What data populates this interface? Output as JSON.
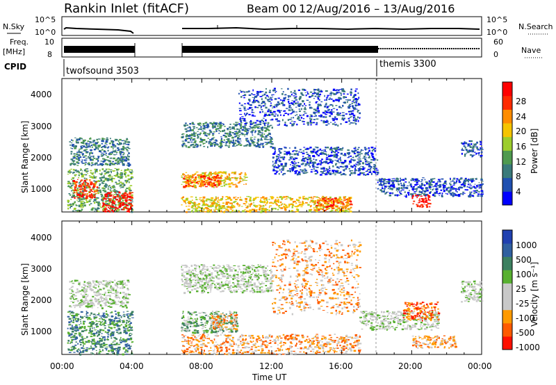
{
  "header": {
    "title": "Rankin Inlet (fitACF)",
    "beam": "Beam 00",
    "date_range": "12/Aug/2016 – 13/Aug/2016"
  },
  "top_panels": {
    "nsky_label": "N.Sky",
    "nsky_ticks": [
      "10^5",
      "10^0"
    ],
    "nsearch_label": "N.Search",
    "nsearch_ticks": [
      "10^5",
      "10^0"
    ],
    "freq_label_1": "Freq.",
    "freq_label_2": "[MHz]",
    "freq_ticks": [
      "10",
      "8"
    ],
    "nave_label": "Nave",
    "nave_ticks": [
      "60",
      "0"
    ],
    "cpid_label": "CPID",
    "cpid_1": "twofsound 3503",
    "cpid_2": "themis 3300"
  },
  "x_axis": {
    "label": "Time UT",
    "ticks": [
      "00:00",
      "04:00",
      "08:00",
      "12:00",
      "16:00",
      "20:00",
      "00:00"
    ]
  },
  "power_panel": {
    "ylabel": "Slant Range [km]",
    "yticks": [
      "1000",
      "2000",
      "3000",
      "4000"
    ],
    "colorbar_label": "Power [dB]",
    "colorbar_ticks": [
      "4",
      "8",
      "12",
      "16",
      "20",
      "24",
      "28"
    ]
  },
  "velocity_panel": {
    "ylabel": "Slant Range [km]",
    "yticks": [
      "1000",
      "2000",
      "3000",
      "4000"
    ],
    "colorbar_label": "Velocity [m s⁻¹]",
    "colorbar_ticks": [
      "1000",
      "500",
      "100",
      "25",
      "-25",
      "-100",
      "-500",
      "-1000"
    ]
  },
  "chart_data": {
    "type": "heatmap",
    "x_unit": "hours UT",
    "xlim": [
      0,
      24
    ],
    "ylim": [
      180,
      4500
    ],
    "data_gaps_hours": [
      [
        4.0,
        6.8
      ]
    ],
    "cpid_change_hour": 18.0,
    "colors": {
      "power": [
        "#0000ff",
        "#1f4fb0",
        "#3a7a7a",
        "#4f9a4f",
        "#9ccd2c",
        "#f5c400",
        "#ff8c00",
        "#ff2a00",
        "#ff0000"
      ],
      "velocity": [
        "#2040b0",
        "#3060a0",
        "#3c8060",
        "#58b030",
        "#c8c8c8",
        "#c8c8c8",
        "#ff9a00",
        "#ff5a00",
        "#ff1000"
      ]
    },
    "power_regions": [
      {
        "t0": 0.3,
        "t1": 4.0,
        "r0": 200,
        "r1": 1600,
        "level": 3
      },
      {
        "t0": 0.6,
        "t1": 2.0,
        "r0": 650,
        "r1": 1250,
        "level": 7
      },
      {
        "t0": 2.3,
        "t1": 4.0,
        "r0": 200,
        "r1": 850,
        "level": 8
      },
      {
        "t0": 0.4,
        "t1": 3.8,
        "r0": 1700,
        "r1": 2600,
        "level": 2
      },
      {
        "t0": 6.8,
        "t1": 10.5,
        "r0": 1000,
        "r1": 1500,
        "level": 5
      },
      {
        "t0": 6.9,
        "t1": 9.0,
        "r0": 1000,
        "r1": 1400,
        "level": 7
      },
      {
        "t0": 6.8,
        "t1": 16.5,
        "r0": 200,
        "r1": 700,
        "level": 5
      },
      {
        "t0": 14.5,
        "t1": 16.5,
        "r0": 250,
        "r1": 650,
        "level": 7
      },
      {
        "t0": 6.8,
        "t1": 12.0,
        "r0": 2300,
        "r1": 3100,
        "level": 2
      },
      {
        "t0": 12.0,
        "t1": 18.0,
        "r0": 1400,
        "r1": 2300,
        "level": 1
      },
      {
        "t0": 10.0,
        "t1": 17.0,
        "r0": 3000,
        "r1": 4200,
        "level": 1
      },
      {
        "t0": 18.0,
        "t1": 24.0,
        "r0": 700,
        "r1": 1300,
        "level": 1
      },
      {
        "t0": 20.0,
        "t1": 21.0,
        "r0": 350,
        "r1": 750,
        "level": 8
      },
      {
        "t0": 22.8,
        "t1": 24.0,
        "r0": 2000,
        "r1": 2500,
        "level": 1
      }
    ],
    "velocity_regions": [
      {
        "t0": 0.3,
        "t1": 4.0,
        "r0": 200,
        "r1": 1600,
        "level": 2
      },
      {
        "t0": 0.4,
        "t1": 3.8,
        "r0": 1700,
        "r1": 2600,
        "level": 4
      },
      {
        "t0": 6.8,
        "t1": 10.0,
        "r0": 900,
        "r1": 1600,
        "level": 3
      },
      {
        "t0": 8.5,
        "t1": 10.0,
        "r0": 1000,
        "r1": 1500,
        "level": 6
      },
      {
        "t0": 6.8,
        "t1": 17.0,
        "r0": 200,
        "r1": 850,
        "level": 6
      },
      {
        "t0": 6.8,
        "t1": 12.0,
        "r0": 2200,
        "r1": 3100,
        "level": 4
      },
      {
        "t0": 12.0,
        "t1": 17.0,
        "r0": 1500,
        "r1": 3900,
        "level": 6
      },
      {
        "t0": 17.0,
        "t1": 21.5,
        "r0": 1000,
        "r1": 1600,
        "level": 4
      },
      {
        "t0": 19.5,
        "t1": 21.5,
        "r0": 1300,
        "r1": 1900,
        "level": 7
      },
      {
        "t0": 20.0,
        "t1": 22.5,
        "r0": 400,
        "r1": 800,
        "level": 6
      },
      {
        "t0": 22.8,
        "t1": 24.0,
        "r0": 1900,
        "r1": 2600,
        "level": 4
      }
    ]
  }
}
